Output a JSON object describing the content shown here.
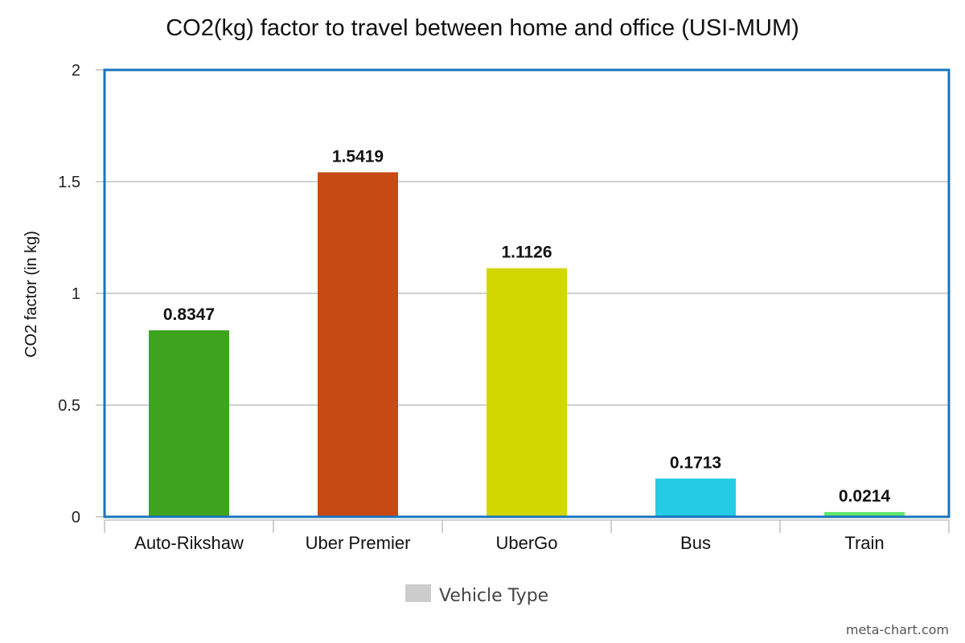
{
  "chart_data": {
    "type": "bar",
    "title": "CO2(kg) factor to travel between home and office (USI-MUM)",
    "xlabel": "",
    "ylabel": "CO2 factor (in kg)",
    "ylim": [
      0,
      2
    ],
    "yticks": [
      0,
      0.5,
      1,
      1.5,
      2
    ],
    "ytick_labels": [
      "0",
      "0.5",
      "1",
      "1.5",
      "2"
    ],
    "categories": [
      "Auto-Rikshaw",
      "Uber Premier",
      "UberGo",
      "Bus",
      "Train"
    ],
    "series": [
      {
        "name": "Vehicle Type",
        "values": [
          0.8347,
          1.5419,
          1.1126,
          0.1713,
          0.0214
        ],
        "labels": [
          "0.8347",
          "1.5419",
          "1.1126",
          "0.1713",
          "0.0214"
        ],
        "colors": [
          "#3ea31d",
          "#c64a14",
          "#d3d700",
          "#24cbe5",
          "#64e572"
        ]
      }
    ],
    "grid": true,
    "legend": {
      "position": "bottom-center",
      "swatch_color": "#cccccc"
    },
    "frame_color": "#1a75bc"
  },
  "credit": "meta-chart.com"
}
